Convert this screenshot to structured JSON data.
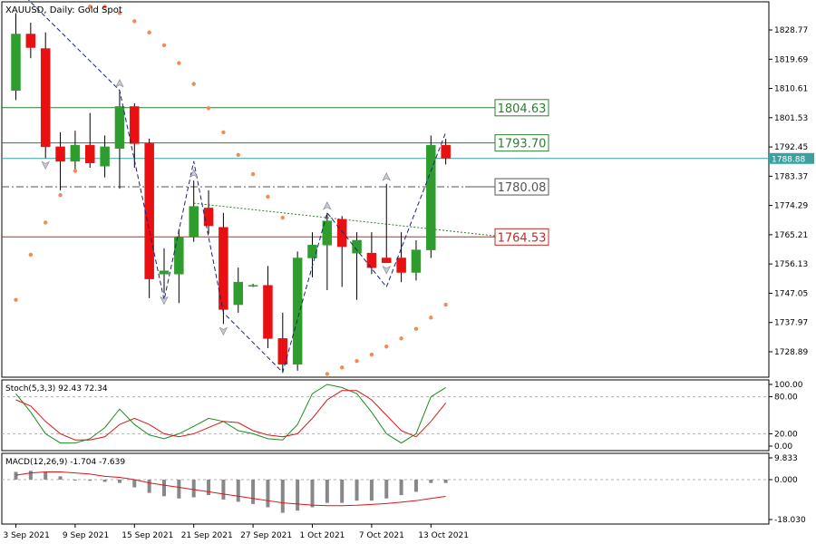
{
  "chart_data": [
    {
      "type": "candlestick",
      "title": "XAUUSD, Daily:  Gold Spot",
      "y_ticks": [
        "1828.77",
        "1819.69",
        "1810.61",
        "1801.53",
        "1792.45",
        "1783.37",
        "1774.29",
        "1765.21",
        "1756.13",
        "1747.05",
        "1737.97",
        "1728.89"
      ],
      "ylim": [
        1721.0,
        1837.5
      ],
      "current_price": "1788.88",
      "x_labels": [
        {
          "index": 0,
          "label": "3 Sep 2021"
        },
        {
          "index": 4,
          "label": "9 Sep 2021"
        },
        {
          "index": 8,
          "label": "15 Sep 2021"
        },
        {
          "index": 12,
          "label": "21 Sep 2021"
        },
        {
          "index": 16,
          "label": "27 Sep 2021"
        },
        {
          "index": 20,
          "label": "1 Oct 2021"
        },
        {
          "index": 24,
          "label": "7 Oct 2021"
        },
        {
          "index": 28,
          "label": "13 Oct 2021"
        }
      ],
      "candles": [
        {
          "o": 1810.0,
          "h": 1834.0,
          "l": 1807.0,
          "c": 1827.5
        },
        {
          "o": 1827.5,
          "h": 1831.0,
          "l": 1820.0,
          "c": 1823.3
        },
        {
          "o": 1823.0,
          "h": 1828.0,
          "l": 1789.0,
          "c": 1792.5
        },
        {
          "o": 1792.5,
          "h": 1797.0,
          "l": 1779.0,
          "c": 1788.0
        },
        {
          "o": 1788.0,
          "h": 1797.5,
          "l": 1785.0,
          "c": 1793.0
        },
        {
          "o": 1793.0,
          "h": 1803.0,
          "l": 1786.0,
          "c": 1787.5
        },
        {
          "o": 1786.5,
          "h": 1796.0,
          "l": 1783.0,
          "c": 1792.5
        },
        {
          "o": 1792.0,
          "h": 1810.0,
          "l": 1779.5,
          "c": 1805.0
        },
        {
          "o": 1805.0,
          "h": 1806.0,
          "l": 1786.0,
          "c": 1793.5
        },
        {
          "o": 1793.5,
          "h": 1795.0,
          "l": 1745.5,
          "c": 1751.5
        },
        {
          "o": 1753.0,
          "h": 1761.0,
          "l": 1747.0,
          "c": 1754.0
        },
        {
          "o": 1753.0,
          "h": 1767.0,
          "l": 1744.0,
          "c": 1764.5
        },
        {
          "o": 1764.5,
          "h": 1782.0,
          "l": 1763.0,
          "c": 1774.0
        },
        {
          "o": 1773.5,
          "h": 1779.0,
          "l": 1765.5,
          "c": 1768.0
        },
        {
          "o": 1767.5,
          "h": 1772.0,
          "l": 1737.5,
          "c": 1742.0
        },
        {
          "o": 1743.5,
          "h": 1755.0,
          "l": 1741.0,
          "c": 1750.5
        },
        {
          "o": 1749.5,
          "h": 1750.0,
          "l": 1749.0,
          "c": 1749.5
        },
        {
          "o": 1749.5,
          "h": 1755.5,
          "l": 1730.0,
          "c": 1733.0
        },
        {
          "o": 1733.0,
          "h": 1741.0,
          "l": 1722.5,
          "c": 1725.0
        },
        {
          "o": 1725.0,
          "h": 1760.0,
          "l": 1723.0,
          "c": 1758.0
        },
        {
          "o": 1758.0,
          "h": 1766.0,
          "l": 1752.0,
          "c": 1762.0
        },
        {
          "o": 1762.0,
          "h": 1772.0,
          "l": 1748.0,
          "c": 1769.5
        },
        {
          "o": 1770.0,
          "h": 1771.0,
          "l": 1749.0,
          "c": 1761.5
        },
        {
          "o": 1759.5,
          "h": 1766.0,
          "l": 1745.0,
          "c": 1763.5
        },
        {
          "o": 1759.5,
          "h": 1766.0,
          "l": 1753.0,
          "c": 1755.0
        },
        {
          "o": 1758.0,
          "h": 1781.0,
          "l": 1756.5,
          "c": 1756.5
        },
        {
          "o": 1758.0,
          "h": 1766.0,
          "l": 1750.5,
          "c": 1753.5
        },
        {
          "o": 1753.5,
          "h": 1763.5,
          "l": 1751.0,
          "c": 1760.5
        },
        {
          "o": 1760.5,
          "h": 1796.0,
          "l": 1758.0,
          "c": 1793.0
        },
        {
          "o": 1793.0,
          "h": 1795.0,
          "l": 1787.0,
          "c": 1789.0
        }
      ],
      "levels": [
        {
          "label": "1804.63",
          "value": 1804.63,
          "color": "#2e7d32"
        },
        {
          "label": "1793.70",
          "value": 1793.7,
          "color": "#2e7d32"
        },
        {
          "label": "1780.08",
          "value": 1780.08,
          "color": "#555555"
        },
        {
          "label": "1764.53",
          "value": 1764.53,
          "color": "#c62828"
        }
      ],
      "zigzag": [
        [
          0,
          1842.0
        ],
        [
          7,
          1810.0
        ],
        [
          10,
          1745.0
        ],
        [
          12,
          1788.0
        ],
        [
          14,
          1741.0
        ],
        [
          18,
          1722.5
        ],
        [
          21,
          1772.0
        ],
        [
          25,
          1749.0
        ],
        [
          29,
          1797.0
        ]
      ],
      "trendline": [
        [
          12,
          1775.0
        ],
        [
          30,
          1764.5
        ]
      ],
      "sar": [
        [
          0,
          1745.0
        ],
        [
          1,
          1759.0
        ],
        [
          2,
          1769.0
        ],
        [
          3,
          1777.5
        ],
        [
          4,
          1785.0
        ],
        [
          5,
          1836.0
        ],
        [
          6,
          1836.0
        ],
        [
          7,
          1834.0
        ],
        [
          8,
          1831.5
        ],
        [
          9,
          1828.0
        ],
        [
          10,
          1824.0
        ],
        [
          11,
          1818.5
        ],
        [
          12,
          1812.0
        ],
        [
          13,
          1804.5
        ],
        [
          14,
          1797.0
        ],
        [
          15,
          1790.0
        ],
        [
          16,
          1784.0
        ],
        [
          17,
          1777.0
        ],
        [
          18,
          1770.5
        ],
        [
          19,
          1720.5
        ],
        [
          20,
          1721.0
        ],
        [
          21,
          1722.0
        ],
        [
          22,
          1724.0
        ],
        [
          23,
          1726.0
        ],
        [
          24,
          1728.0
        ],
        [
          25,
          1730.5
        ],
        [
          26,
          1733.0
        ],
        [
          27,
          1736.0
        ],
        [
          28,
          1739.5
        ],
        [
          29,
          1743.5
        ]
      ],
      "fractals_up": [
        7,
        12,
        21,
        25
      ],
      "fractals_down": [
        2,
        10,
        14,
        25
      ],
      "colors": {
        "bull": "#2e9d2e",
        "bear": "#e81010",
        "sar": "#f08c55",
        "zigzag": "#1a237e",
        "price_line": "#3aa1a1"
      }
    },
    {
      "type": "line",
      "title": "Stoch(5,3,3) 92.43 72.34",
      "y_ticks": [
        "100.00",
        "80.00",
        "20.00",
        "0.00"
      ],
      "ylim": [
        0,
        100
      ],
      "levels": [
        80,
        20
      ],
      "series": [
        {
          "color": "#1e8a1e",
          "values": [
            85,
            55,
            20,
            5,
            5,
            12,
            30,
            60,
            35,
            18,
            12,
            20,
            32,
            45,
            40,
            25,
            20,
            12,
            10,
            35,
            85,
            100,
            95,
            85,
            55,
            20,
            5,
            20,
            80,
            95
          ]
        },
        {
          "color": "#d81818",
          "values": [
            75,
            65,
            40,
            20,
            10,
            10,
            15,
            35,
            45,
            35,
            20,
            15,
            20,
            30,
            40,
            38,
            25,
            18,
            15,
            20,
            45,
            75,
            90,
            90,
            75,
            50,
            25,
            15,
            40,
            70
          ]
        }
      ]
    },
    {
      "type": "bar",
      "title": "MACD(12,26,9) -1.704 -7.639",
      "y_ticks": [
        "9.833",
        "0.000",
        "-18.030"
      ],
      "ylim": [
        -18.03,
        9.833
      ],
      "histogram": [
        3.5,
        4.0,
        3.5,
        1.5,
        0.0,
        -0.5,
        -1.0,
        -1.5,
        -3.5,
        -6.0,
        -7.5,
        -8.5,
        -8.0,
        -7.0,
        -9.0,
        -10.0,
        -11.0,
        -12.5,
        -15.0,
        -14.0,
        -12.5,
        -10.5,
        -10.5,
        -9.5,
        -9.5,
        -8.5,
        -7.0,
        -5.5,
        -1.5,
        -1.5
      ],
      "signal": [
        2.0,
        3.0,
        3.5,
        3.5,
        3.0,
        2.5,
        1.5,
        1.0,
        0.0,
        -1.5,
        -2.5,
        -3.5,
        -4.5,
        -5.5,
        -6.5,
        -7.5,
        -8.5,
        -9.5,
        -10.5,
        -11.0,
        -11.5,
        -11.8,
        -11.8,
        -11.6,
        -11.2,
        -10.8,
        -10.2,
        -9.5,
        -8.5,
        -7.6
      ],
      "colors": {
        "histogram": "#888888",
        "signal": "#d81818"
      }
    }
  ]
}
